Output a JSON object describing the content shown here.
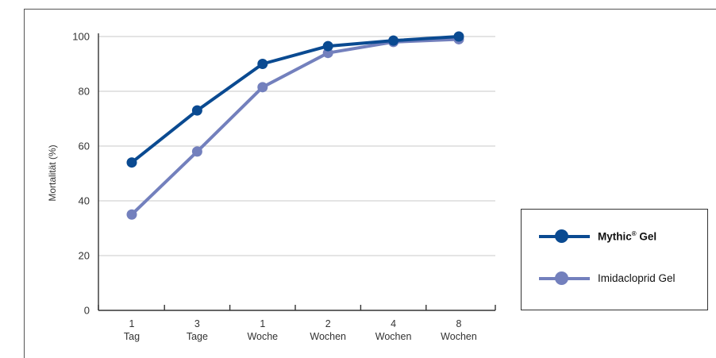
{
  "chart_data": {
    "type": "line",
    "title": "",
    "ylabel": "Mortalität (%)",
    "xlabel": "",
    "ylim": [
      0,
      100
    ],
    "yticks": [
      0,
      20,
      40,
      60,
      80,
      100
    ],
    "grid": true,
    "legend_position": "right",
    "categories": [
      [
        "1",
        "Tag"
      ],
      [
        "3",
        "Tage"
      ],
      [
        "1",
        "Woche"
      ],
      [
        "2",
        "Wochen"
      ],
      [
        "4",
        "Wochen"
      ],
      [
        "8",
        "Wochen"
      ]
    ],
    "series": [
      {
        "name": "Mythic",
        "name_sup": "®",
        "name_suffix": " Gel",
        "bold": true,
        "color": "#0a4a91",
        "values": [
          54,
          73,
          90,
          96.5,
          98.5,
          100
        ]
      },
      {
        "name": "Imidacloprid Gel",
        "name_sup": "",
        "name_suffix": "",
        "bold": false,
        "color": "#7380bd",
        "values": [
          35,
          58,
          81.5,
          94,
          98,
          99
        ]
      }
    ]
  }
}
